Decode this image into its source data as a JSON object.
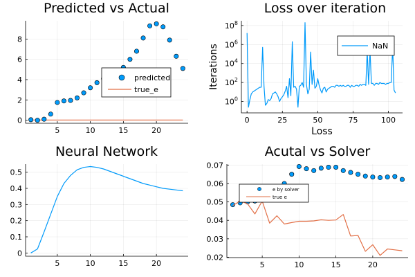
{
  "colors": {
    "blue": "#009AFA",
    "orange": "#E26F46",
    "marker_stroke": "#000000"
  },
  "chart_data": [
    {
      "type": "scatter",
      "title": "Predicted vs Actual",
      "xlabel": "",
      "ylabel": "",
      "xlim": [
        0.2,
        24.8
      ],
      "ylim": [
        -0.3,
        9.8
      ],
      "xticks": [
        5,
        10,
        15,
        20
      ],
      "yticks": [
        0,
        2,
        4,
        6,
        8
      ],
      "grid": true,
      "legend": "right",
      "series": [
        {
          "name": "predicted",
          "kind": "scatter",
          "x": [
            1,
            2,
            3,
            4,
            5,
            6,
            7,
            8,
            9,
            10,
            11,
            12,
            13,
            14,
            15,
            16,
            17,
            18,
            19,
            20,
            21,
            22,
            23,
            24
          ],
          "y": [
            0.05,
            0.0,
            0.1,
            0.6,
            1.75,
            1.9,
            1.95,
            2.2,
            2.7,
            3.2,
            3.7,
            4.1,
            4.4,
            4.8,
            5.2,
            6.0,
            6.8,
            8.1,
            9.3,
            9.5,
            9.2,
            7.9,
            6.3,
            5.1
          ]
        },
        {
          "name": "true_e",
          "kind": "line",
          "x": [
            1,
            2,
            3,
            4,
            5,
            6,
            7,
            8,
            9,
            10,
            11,
            12,
            13,
            14,
            15,
            16,
            17,
            18,
            19,
            20,
            21,
            22,
            23,
            24
          ],
          "y": [
            0.02,
            0.02,
            0.02,
            0.02,
            0.02,
            0.02,
            0.02,
            0.02,
            0.02,
            0.02,
            0.02,
            0.02,
            0.02,
            0.02,
            0.02,
            0.02,
            0.02,
            0.02,
            0.02,
            0.02,
            0.02,
            0.02,
            0.02,
            0.02
          ]
        }
      ]
    },
    {
      "type": "line",
      "title": "Loss over iteration",
      "xlabel": "Loss",
      "ylabel": "Iterations",
      "yscale": "log",
      "xlim": [
        -4,
        110
      ],
      "ylim_log10": [
        -1.2,
        8.5
      ],
      "xticks": [
        0,
        25,
        50,
        75,
        100
      ],
      "yticks": [
        0,
        2,
        4,
        6,
        8
      ],
      "ytick_base": "10",
      "grid": true,
      "legend": "top-right",
      "series": [
        {
          "name": "NaN",
          "x": [
            0,
            1,
            2,
            3,
            4,
            5,
            6,
            7,
            8,
            9,
            10,
            11,
            12,
            13,
            14,
            15,
            16,
            17,
            18,
            19,
            20,
            21,
            22,
            23,
            24,
            25,
            26,
            27,
            28,
            29,
            30,
            31,
            32,
            33,
            34,
            35,
            36,
            37,
            38,
            39,
            40,
            41,
            42,
            43,
            44,
            45,
            46,
            47,
            48,
            49,
            50,
            51,
            52,
            53,
            54,
            55,
            56,
            57,
            58,
            59,
            60,
            61,
            62,
            63,
            64,
            65,
            66,
            67,
            68,
            69,
            70,
            71,
            72,
            73,
            74,
            75,
            76,
            77,
            78,
            79,
            80,
            81,
            82,
            83,
            84,
            85,
            86,
            87,
            88,
            89,
            90,
            91,
            92,
            93,
            94,
            95,
            96,
            97,
            98,
            99,
            100,
            101,
            102,
            103,
            104,
            105
          ],
          "y_log10": [
            7.2,
            -0.6,
            0.2,
            0.8,
            1.0,
            1.1,
            1.2,
            1.3,
            1.4,
            1.5,
            1.5,
            5.7,
            1.6,
            -0.4,
            -0.2,
            0.2,
            0.1,
            0.3,
            0.8,
            0.9,
            1.0,
            0.8,
            0.5,
            0.0,
            0.3,
            0.5,
            0.7,
            1.1,
            1.6,
            0.4,
            2.4,
            0.6,
            6.3,
            1.5,
            1.6,
            1.3,
            -0.6,
            1.6,
            1.7,
            2.0,
            1.5,
            8.3,
            1.8,
            0.8,
            1.3,
            5.2,
            1.8,
            3.3,
            1.4,
            1.6,
            2.4,
            1.7,
            1.2,
            0.9,
            1.4,
            1.5,
            1.0,
            1.3,
            1.4,
            1.5,
            1.6,
            1.6,
            1.5,
            1.7,
            1.7,
            1.6,
            1.7,
            1.6,
            1.7,
            1.6,
            1.6,
            1.7,
            1.7,
            1.5,
            1.7,
            1.6,
            1.6,
            1.7,
            1.7,
            1.6,
            1.8,
            1.7,
            1.8,
            1.8,
            1.7,
            5.3,
            1.8,
            5.3,
            1.9,
            1.9,
            1.7,
            1.9,
            1.9,
            1.8,
            2.0,
            1.9,
            1.9,
            1.9,
            1.8,
            1.9,
            1.9,
            2.0,
            2.0,
            5.8,
            1.2,
            0.9
          ]
        }
      ]
    },
    {
      "type": "line",
      "title": "Neural Network",
      "xlabel": "",
      "ylabel": "",
      "xlim": [
        0.2,
        24.8
      ],
      "ylim": [
        -0.02,
        0.55
      ],
      "xticks": [
        5,
        10,
        15,
        20
      ],
      "yticks": [
        0.0,
        0.1,
        0.2,
        0.3,
        0.4,
        0.5
      ],
      "grid": true,
      "series": [
        {
          "x": [
            1,
            2,
            3,
            4,
            5,
            6,
            7,
            8,
            9,
            10,
            11,
            12,
            13,
            14,
            15,
            16,
            17,
            18,
            19,
            20,
            21,
            22,
            23,
            24
          ],
          "y": [
            0.0,
            0.025,
            0.13,
            0.24,
            0.35,
            0.43,
            0.48,
            0.515,
            0.53,
            0.535,
            0.53,
            0.52,
            0.505,
            0.49,
            0.475,
            0.46,
            0.445,
            0.43,
            0.42,
            0.41,
            0.4,
            0.395,
            0.39,
            0.385
          ]
        }
      ]
    },
    {
      "type": "scatter",
      "title": "Acutal vs Solver",
      "xlabel": "",
      "ylabel": "",
      "xlim": [
        0.2,
        24.8
      ],
      "ylim": [
        0.0198,
        0.0705
      ],
      "xticks": [
        5,
        10,
        15,
        20
      ],
      "yticks": [
        0.02,
        0.03,
        0.04,
        0.05,
        0.06,
        0.07
      ],
      "ytick_labels": [
        "0.02",
        "0.03",
        "0.04",
        "0.05",
        "0.06",
        "0.07"
      ],
      "grid": true,
      "legend": "inside-left",
      "series": [
        {
          "name": "e by solver",
          "kind": "scatter",
          "x": [
            1,
            2,
            3,
            4,
            5,
            6,
            7,
            8,
            9,
            10,
            11,
            12,
            13,
            14,
            15,
            16,
            17,
            18,
            19,
            20,
            21,
            22,
            23,
            24
          ],
          "y": [
            0.0485,
            0.0495,
            0.05,
            0.0505,
            0.0515,
            0.053,
            0.056,
            0.06,
            0.065,
            0.0692,
            0.068,
            0.067,
            0.0683,
            0.0688,
            0.0688,
            0.067,
            0.066,
            0.065,
            0.064,
            0.0635,
            0.0632,
            0.0635,
            0.0638,
            0.0622
          ]
        },
        {
          "name": "true e",
          "kind": "line",
          "x": [
            1,
            2,
            3,
            4,
            5,
            6,
            7,
            8,
            9,
            10,
            11,
            12,
            13,
            14,
            15,
            16,
            17,
            18,
            19,
            20,
            21,
            22,
            23,
            24
          ],
          "y": [
            0.048,
            0.0505,
            0.049,
            0.0435,
            0.0505,
            0.0385,
            0.0425,
            0.038,
            0.0388,
            0.0395,
            0.0395,
            0.0397,
            0.0403,
            0.04,
            0.0402,
            0.0432,
            0.0315,
            0.0318,
            0.0232,
            0.0268,
            0.021,
            0.0245,
            0.024,
            0.0235
          ]
        }
      ]
    }
  ]
}
